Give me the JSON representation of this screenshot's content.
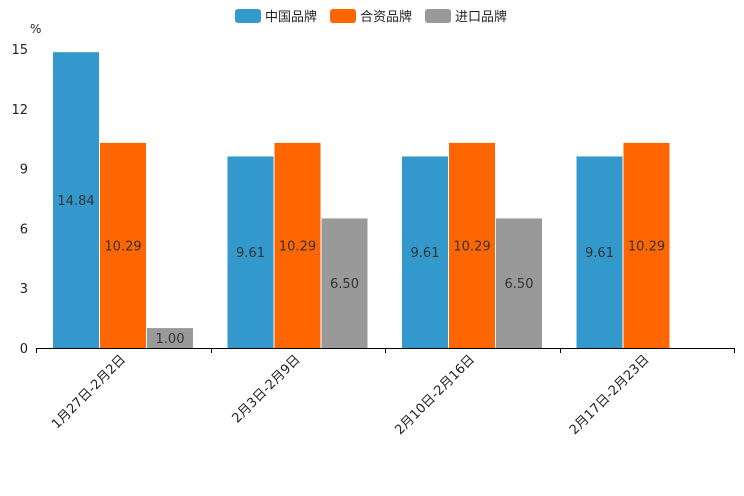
{
  "chart_data": {
    "type": "bar",
    "ylabel": "%",
    "ylim": [
      0,
      15
    ],
    "yticks": [
      "0",
      "3",
      "6",
      "9",
      "12",
      "15"
    ],
    "categories": [
      "1月27日-2月2日",
      "2月3日-2月9日",
      "2月10日-2月16日",
      "2月17日-2月23日"
    ],
    "legend_position": "top-center",
    "series": [
      {
        "name": "中国品牌",
        "color": "#3399cc",
        "values": [
          14.84,
          9.61,
          9.61,
          9.61
        ],
        "labels": [
          "14.84",
          "9.61",
          "9.61",
          "9.61"
        ]
      },
      {
        "name": "合资品牌",
        "color": "#ff6600",
        "values": [
          10.29,
          10.29,
          10.29,
          10.29
        ],
        "labels": [
          "10.29",
          "10.29",
          "10.29",
          "10.29"
        ]
      },
      {
        "name": "进口品牌",
        "color": "#999999",
        "values": [
          1.0,
          6.5,
          6.5,
          null
        ],
        "labels": [
          "1.00",
          "6.50",
          "6.50",
          null
        ]
      }
    ]
  }
}
